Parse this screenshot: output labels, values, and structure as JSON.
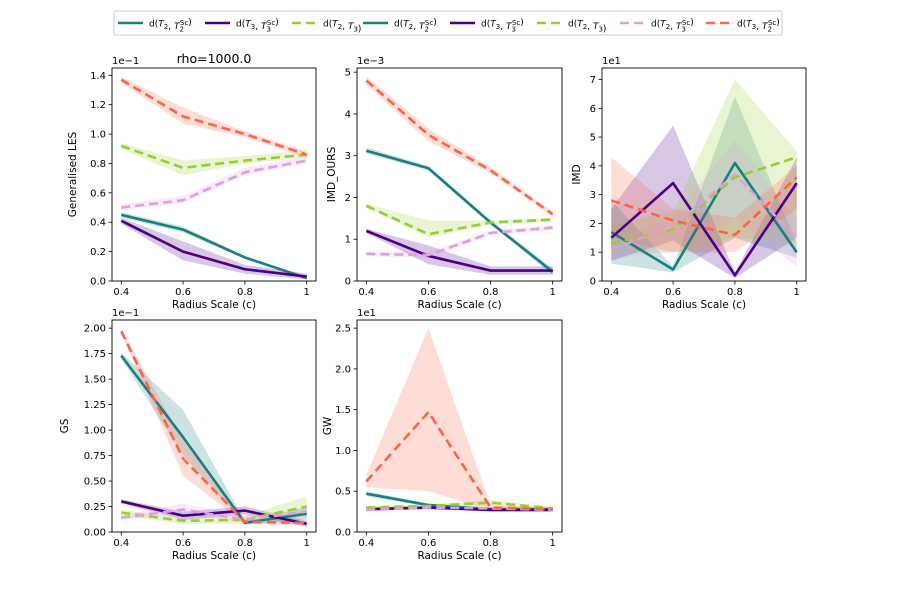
{
  "colors": {
    "teal": "#1b7f7f",
    "purple": "#4b0082",
    "green": "#9acd32",
    "pink": "#dda0dd",
    "orange": "#ff6347"
  },
  "legend": [
    {
      "label": "d(T2, T2^Sc)",
      "color": "#1b7f7f",
      "dash": "solid"
    },
    {
      "label": "d(T3, T3^Sc)",
      "color": "#4b0082",
      "dash": "solid"
    },
    {
      "label": "d(T2, T3)",
      "color": "#9acd32",
      "dash": "dashed"
    },
    {
      "label": "d(T2, T2^Sc)",
      "color": "#1b7f7f",
      "dash": "solid"
    },
    {
      "label": "d(T3, T3^Sc)",
      "color": "#4b0082",
      "dash": "solid"
    },
    {
      "label": "d(T2, T3)",
      "color": "#9acd32",
      "dash": "dashed"
    },
    {
      "label": "d(T2, T3^Sc)",
      "color": "#dda0dd",
      "dash": "dashed"
    },
    {
      "label": "d(T3, T2^Sc)",
      "color": "#ff6347",
      "dash": "dashed"
    }
  ],
  "chart_data": [
    {
      "type": "line",
      "title": "rho=1000.0",
      "xlabel": "Radius Scale (c)",
      "ylabel": "Generalised LES",
      "offset_text": "1e−1",
      "x": [
        0.4,
        0.6,
        0.8,
        1.0
      ],
      "xticks": [
        "0.4",
        "0.6",
        "0.8",
        "1"
      ],
      "ylim": [
        0,
        1.45
      ],
      "yticks": [
        "0.0",
        "0.2",
        "0.4",
        "0.6",
        "0.8",
        "1.0",
        "1.2",
        "1.4"
      ],
      "series": [
        {
          "name": "d(T2, T2^Sc)",
          "color": "teal",
          "dash": "solid",
          "values": [
            0.45,
            0.35,
            0.16,
            0.02
          ],
          "lower": [
            0.43,
            0.33,
            0.15,
            0.01
          ],
          "upper": [
            0.47,
            0.37,
            0.17,
            0.03
          ]
        },
        {
          "name": "d(T3, T3^Sc)",
          "color": "purple",
          "dash": "solid",
          "values": [
            0.41,
            0.2,
            0.08,
            0.03
          ],
          "lower": [
            0.39,
            0.14,
            0.05,
            0.01
          ],
          "upper": [
            0.43,
            0.27,
            0.11,
            0.05
          ]
        },
        {
          "name": "d(T2, T3)",
          "color": "green",
          "dash": "dashed",
          "values": [
            0.92,
            0.77,
            0.82,
            0.86
          ],
          "lower": [
            0.9,
            0.72,
            0.8,
            0.84
          ],
          "upper": [
            0.94,
            0.82,
            0.85,
            0.89
          ]
        },
        {
          "name": "d(T2, T3^Sc)",
          "color": "pink",
          "dash": "dashed",
          "values": [
            0.5,
            0.55,
            0.74,
            0.82
          ],
          "lower": [
            0.48,
            0.53,
            0.72,
            0.8
          ],
          "upper": [
            0.52,
            0.58,
            0.77,
            0.85
          ]
        },
        {
          "name": "d(T3, T2^Sc)",
          "color": "orange",
          "dash": "dashed",
          "values": [
            1.37,
            1.12,
            1.0,
            0.86
          ],
          "lower": [
            1.35,
            1.07,
            0.98,
            0.84
          ],
          "upper": [
            1.39,
            1.18,
            1.02,
            0.88
          ]
        }
      ]
    },
    {
      "type": "line",
      "title": "",
      "xlabel": "Radius Scale (c)",
      "ylabel": "IMD_OURS",
      "offset_text": "1e−3",
      "x": [
        0.4,
        0.6,
        0.8,
        1.0
      ],
      "xticks": [
        "0.4",
        "0.6",
        "0.8",
        "1"
      ],
      "ylim": [
        0,
        5.1
      ],
      "yticks": [
        "0",
        "1",
        "2",
        "3",
        "4",
        "5"
      ],
      "series": [
        {
          "name": "d(T2, T2^Sc)",
          "color": "teal",
          "dash": "solid",
          "values": [
            3.12,
            2.7,
            1.4,
            0.22
          ],
          "lower": [
            3.05,
            2.65,
            1.35,
            0.15
          ],
          "upper": [
            3.2,
            2.75,
            1.45,
            0.3
          ]
        },
        {
          "name": "d(T3, T3^Sc)",
          "color": "purple",
          "dash": "solid",
          "values": [
            1.2,
            0.6,
            0.25,
            0.25
          ],
          "lower": [
            1.15,
            0.4,
            0.15,
            0.15
          ],
          "upper": [
            1.25,
            0.85,
            0.35,
            0.35
          ]
        },
        {
          "name": "d(T2, T3)",
          "color": "green",
          "dash": "dashed",
          "values": [
            1.8,
            1.12,
            1.4,
            1.47
          ],
          "lower": [
            1.75,
            1.05,
            1.35,
            1.42
          ],
          "upper": [
            1.85,
            1.45,
            1.45,
            1.52
          ]
        },
        {
          "name": "d(T2, T3^Sc)",
          "color": "pink",
          "dash": "dashed",
          "values": [
            0.65,
            0.62,
            1.15,
            1.28
          ],
          "lower": [
            0.6,
            0.55,
            1.1,
            1.22
          ],
          "upper": [
            0.7,
            0.7,
            1.2,
            1.34
          ]
        },
        {
          "name": "d(T3, T2^Sc)",
          "color": "orange",
          "dash": "dashed",
          "values": [
            4.8,
            3.5,
            2.65,
            1.6
          ],
          "lower": [
            4.7,
            3.35,
            2.58,
            1.55
          ],
          "upper": [
            4.9,
            3.65,
            2.72,
            1.65
          ]
        }
      ]
    },
    {
      "type": "line",
      "title": "",
      "xlabel": "Radius Scale (c)",
      "ylabel": "IMD",
      "offset_text": "1e1",
      "x": [
        0.4,
        0.6,
        0.8,
        1.0
      ],
      "xticks": [
        "0.4",
        "0.6",
        "0.8",
        "1"
      ],
      "ylim": [
        0,
        7.4
      ],
      "yticks": [
        "0",
        "1",
        "2",
        "3",
        "4",
        "5",
        "6",
        "7"
      ],
      "series": [
        {
          "name": "d(T2, T2^Sc)",
          "color": "teal",
          "dash": "solid",
          "values": [
            1.7,
            0.4,
            4.1,
            1.0
          ],
          "lower": [
            0.6,
            0.3,
            1.5,
            0.8
          ],
          "upper": [
            2.8,
            0.5,
            6.4,
            1.3
          ]
        },
        {
          "name": "d(T3, T3^Sc)",
          "color": "purple",
          "dash": "solid",
          "values": [
            1.5,
            3.4,
            0.2,
            3.4
          ],
          "lower": [
            0.7,
            1.4,
            0.1,
            1.5
          ],
          "upper": [
            2.5,
            5.4,
            0.3,
            4.3
          ]
        },
        {
          "name": "d(T2, T3)",
          "color": "green",
          "dash": "dashed",
          "values": [
            1.3,
            1.8,
            3.6,
            4.3
          ],
          "lower": [
            1.0,
            1.0,
            1.5,
            1.3
          ],
          "upper": [
            2.0,
            2.4,
            7.0,
            4.5
          ]
        },
        {
          "name": "d(T2, T3^Sc)",
          "color": "pink",
          "dash": "dashed",
          "values": [
            1.1,
            1.9,
            3.7,
            1.5
          ],
          "lower": [
            0.8,
            1.0,
            2.2,
            0.5
          ],
          "upper": [
            1.4,
            2.2,
            4.9,
            2.1
          ]
        },
        {
          "name": "d(T3, T2^Sc)",
          "color": "orange",
          "dash": "dashed",
          "values": [
            2.8,
            2.1,
            1.6,
            3.6
          ],
          "lower": [
            1.5,
            1.0,
            1.0,
            2.5
          ],
          "upper": [
            4.3,
            2.5,
            2.2,
            4.0
          ]
        }
      ]
    },
    {
      "type": "line",
      "title": "",
      "xlabel": "Radius Scale (c)",
      "ylabel": "GS",
      "offset_text": "1e−1",
      "x": [
        0.4,
        0.6,
        0.8,
        1.0
      ],
      "xticks": [
        "0.4",
        "0.6",
        "0.8",
        "1"
      ],
      "ylim": [
        0,
        2.08
      ],
      "yticks": [
        "0.00",
        "0.25",
        "0.50",
        "0.75",
        "1.00",
        "1.25",
        "1.50",
        "1.75",
        "2.00"
      ],
      "series": [
        {
          "name": "d(T2, T2^Sc)",
          "color": "teal",
          "dash": "solid",
          "values": [
            1.73,
            0.93,
            0.09,
            0.18
          ],
          "lower": [
            1.7,
            0.75,
            0.07,
            0.12
          ],
          "upper": [
            1.76,
            1.2,
            0.11,
            0.24
          ]
        },
        {
          "name": "d(T3, T3^Sc)",
          "color": "purple",
          "dash": "solid",
          "values": [
            0.3,
            0.16,
            0.21,
            0.08
          ],
          "lower": [
            0.28,
            0.12,
            0.17,
            0.05
          ],
          "upper": [
            0.32,
            0.2,
            0.25,
            0.11
          ]
        },
        {
          "name": "d(T2, T3)",
          "color": "green",
          "dash": "dashed",
          "values": [
            0.19,
            0.11,
            0.12,
            0.25
          ],
          "lower": [
            0.16,
            0.08,
            0.08,
            0.15
          ],
          "upper": [
            0.22,
            0.14,
            0.16,
            0.35
          ]
        },
        {
          "name": "d(T2, T3^Sc)",
          "color": "pink",
          "dash": "dashed",
          "values": [
            0.14,
            0.22,
            0.12,
            0.2
          ],
          "lower": [
            0.12,
            0.17,
            0.09,
            0.16
          ],
          "upper": [
            0.16,
            0.28,
            0.15,
            0.24
          ]
        },
        {
          "name": "d(T3, T2^Sc)",
          "color": "orange",
          "dash": "dashed",
          "values": [
            1.97,
            0.72,
            0.1,
            0.09
          ],
          "lower": [
            1.95,
            0.55,
            0.08,
            0.07
          ],
          "upper": [
            1.99,
            0.9,
            0.12,
            0.11
          ]
        }
      ]
    },
    {
      "type": "line",
      "title": "",
      "xlabel": "Radius Scale (c)",
      "ylabel": "GW",
      "offset_text": "1e1",
      "x": [
        0.4,
        0.6,
        0.8,
        1.0
      ],
      "xticks": [
        "0.4",
        "0.6",
        "0.8",
        "1"
      ],
      "ylim": [
        0,
        2.6
      ],
      "yticks": [
        "0.0",
        "0.5",
        "1.0",
        "1.5",
        "2.0",
        "2.5"
      ],
      "series": [
        {
          "name": "d(T2, T2^Sc)",
          "color": "teal",
          "dash": "solid",
          "values": [
            0.47,
            0.33,
            0.28,
            0.28
          ],
          "lower": [
            0.44,
            0.31,
            0.26,
            0.26
          ],
          "upper": [
            0.5,
            0.35,
            0.3,
            0.3
          ]
        },
        {
          "name": "d(T3, T3^Sc)",
          "color": "purple",
          "dash": "solid",
          "values": [
            0.28,
            0.3,
            0.27,
            0.27
          ],
          "lower": [
            0.26,
            0.28,
            0.25,
            0.25
          ],
          "upper": [
            0.3,
            0.32,
            0.29,
            0.29
          ]
        },
        {
          "name": "d(T2, T3)",
          "color": "green",
          "dash": "dashed",
          "values": [
            0.3,
            0.32,
            0.36,
            0.29
          ],
          "lower": [
            0.28,
            0.3,
            0.33,
            0.27
          ],
          "upper": [
            0.32,
            0.34,
            0.39,
            0.31
          ]
        },
        {
          "name": "d(T2, T3^Sc)",
          "color": "pink",
          "dash": "dashed",
          "values": [
            0.27,
            0.3,
            0.29,
            0.27
          ],
          "lower": [
            0.25,
            0.28,
            0.27,
            0.25
          ],
          "upper": [
            0.29,
            0.32,
            0.31,
            0.29
          ]
        },
        {
          "name": "d(T3, T2^Sc)",
          "color": "orange",
          "dash": "dashed",
          "values": [
            0.62,
            1.47,
            0.3,
            0.28
          ],
          "lower": [
            0.55,
            0.5,
            0.27,
            0.26
          ],
          "upper": [
            0.7,
            2.5,
            0.33,
            0.3
          ]
        }
      ]
    }
  ]
}
